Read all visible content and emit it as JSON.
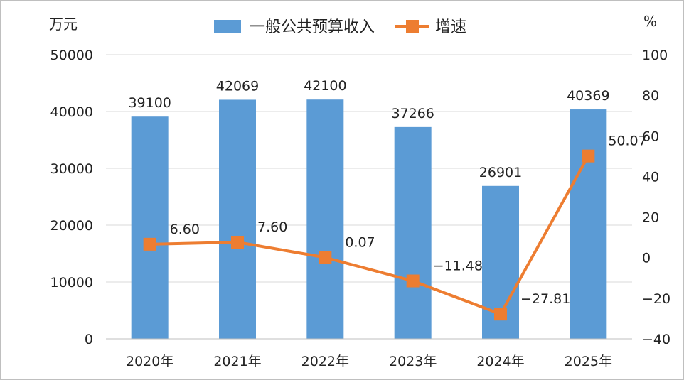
{
  "chart_data": {
    "type": "bar",
    "categories": [
      "2020年",
      "2021年",
      "2022年",
      "2023年",
      "2024年",
      "2025年"
    ],
    "series": [
      {
        "name": "一般公共预算收入",
        "type": "bar",
        "axis": "left",
        "color": "#5b9bd5",
        "values": [
          39100,
          42069,
          42100,
          37266,
          26901,
          40369
        ],
        "labels": [
          "39100",
          "42069",
          "42100",
          "37266",
          "26901",
          "40369"
        ]
      },
      {
        "name": "增速",
        "type": "line",
        "axis": "right",
        "color": "#ed7d31",
        "marker": "square",
        "values": [
          6.6,
          7.6,
          0.07,
          -11.48,
          -27.81,
          50.07
        ],
        "labels": [
          "6.60",
          "7.60",
          "0.07",
          "−11.48",
          "−27.81",
          "50.07"
        ]
      }
    ],
    "y_left": {
      "unit": "万元",
      "min": 0,
      "max": 50000,
      "ticks": [
        "0",
        "10000",
        "20000",
        "30000",
        "40000",
        "50000"
      ]
    },
    "y_right": {
      "unit": "%",
      "min": -40,
      "max": 100,
      "ticks": [
        "−40",
        "−20",
        "0",
        "20",
        "40",
        "60",
        "80",
        "100"
      ]
    },
    "grid": true,
    "legend_position": "top-center"
  }
}
